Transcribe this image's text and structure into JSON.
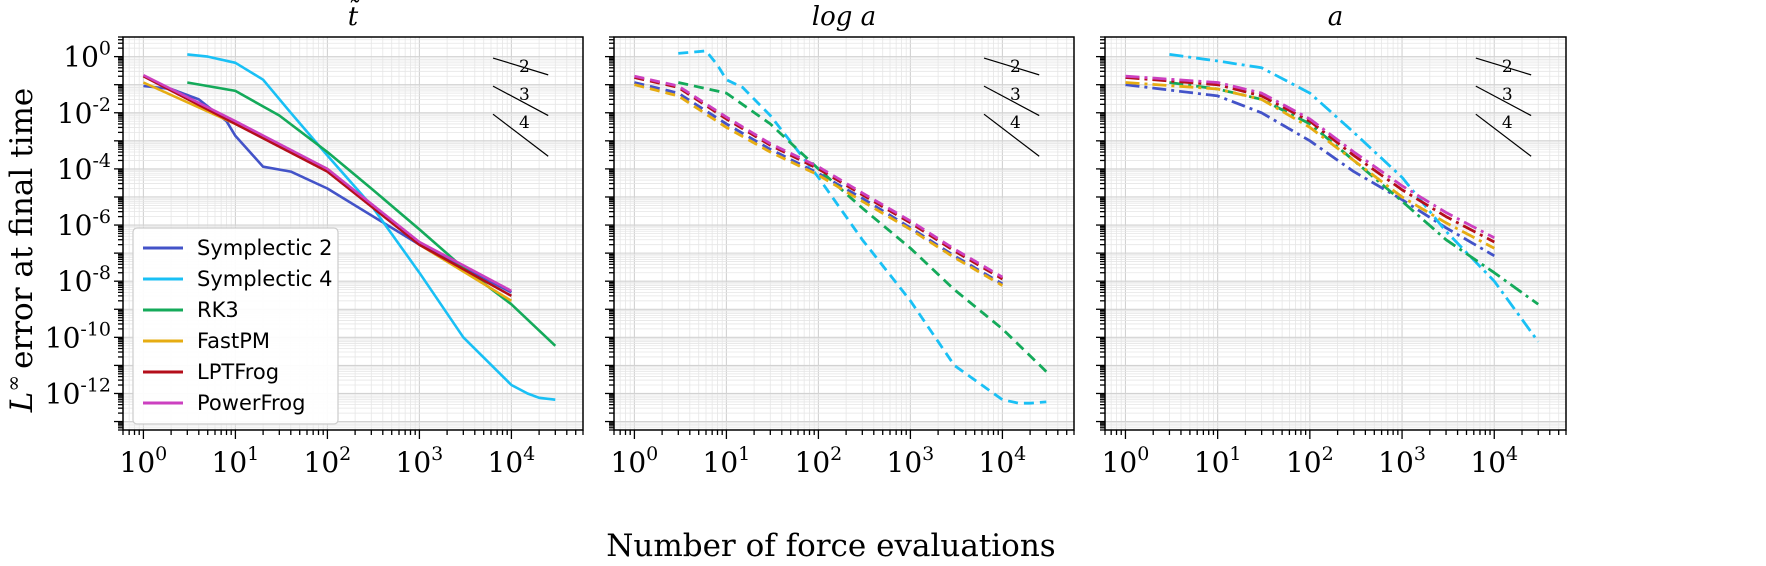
{
  "figure": {
    "ylabel": "error at final time",
    "ylabel_math": "L",
    "ylabel_sup": "∞",
    "xlabel": "Number of force evaluations"
  },
  "legend": {
    "placement": "lower-left of first panel",
    "entries": [
      {
        "name": "Symplectic 2",
        "color": "#4353c8"
      },
      {
        "name": "Symplectic 4",
        "color": "#19c0f5"
      },
      {
        "name": "RK3",
        "color": "#14aa5a"
      },
      {
        "name": "FastPM",
        "color": "#e6ac12"
      },
      {
        "name": "LPTFrog",
        "color": "#b40e1a"
      },
      {
        "name": "PowerFrog",
        "color": "#cc40c0"
      }
    ]
  },
  "x_ticks": [
    {
      "base": "10",
      "exp": "0",
      "value": 1
    },
    {
      "base": "10",
      "exp": "1",
      "value": 10
    },
    {
      "base": "10",
      "exp": "2",
      "value": 100
    },
    {
      "base": "10",
      "exp": "3",
      "value": 1000
    },
    {
      "base": "10",
      "exp": "4",
      "value": 10000
    }
  ],
  "y_ticks": [
    {
      "base": "10",
      "exp": "0",
      "value": 1
    },
    {
      "base": "10",
      "exp": "-2",
      "value": 0.01
    },
    {
      "base": "10",
      "exp": "-4",
      "value": 0.0001
    },
    {
      "base": "10",
      "exp": "-6",
      "value": 1e-06
    },
    {
      "base": "10",
      "exp": "-8",
      "value": 1e-08
    },
    {
      "base": "10",
      "exp": "-10",
      "value": 1e-10
    },
    {
      "base": "10",
      "exp": "-12",
      "value": 1e-12
    }
  ],
  "slope_labels": [
    "2",
    "3",
    "4"
  ],
  "chart_data": [
    {
      "type": "line",
      "title": "t̃",
      "xscale": "log",
      "yscale": "log",
      "xlim": [
        0.6,
        60000
      ],
      "ylim": [
        5e-14,
        5
      ],
      "grid": true,
      "line_style": "solid",
      "series": [
        {
          "name": "Symplectic 2",
          "x": [
            1,
            2,
            4,
            8,
            10,
            20,
            40,
            100,
            1000,
            10000
          ],
          "y": [
            0.09,
            0.07,
            0.03,
            0.005,
            0.0015,
            0.00012,
            8e-05,
            2e-05,
            2e-07,
            4e-09
          ]
        },
        {
          "name": "Symplectic 4",
          "x": [
            3,
            5,
            10,
            20,
            40,
            100,
            300,
            1000,
            3000,
            10000,
            15000,
            20000,
            30000
          ],
          "y": [
            1.2,
            1.0,
            0.6,
            0.15,
            0.01,
            0.0003,
            5e-06,
            2e-08,
            1e-10,
            2e-12,
            1e-12,
            7e-13,
            6e-13
          ]
        },
        {
          "name": "RK3",
          "x": [
            3,
            10,
            30,
            100,
            300,
            1000,
            3000,
            10000,
            30000
          ],
          "y": [
            0.12,
            0.06,
            0.008,
            0.0004,
            2e-05,
            7e-07,
            3e-08,
            1.5e-09,
            5e-11
          ]
        },
        {
          "name": "FastPM",
          "x": [
            1,
            10,
            100,
            1000,
            10000
          ],
          "y": [
            0.12,
            0.004,
            0.0001,
            2e-07,
            2e-09
          ]
        },
        {
          "name": "LPTFrog",
          "x": [
            1,
            10,
            100,
            1000,
            10000
          ],
          "y": [
            0.2,
            0.004,
            8e-05,
            2e-07,
            3e-09
          ]
        },
        {
          "name": "PowerFrog",
          "x": [
            1,
            10,
            100,
            1000,
            10000
          ],
          "y": [
            0.22,
            0.005,
            0.0001,
            2.5e-07,
            4.5e-09
          ]
        }
      ]
    },
    {
      "type": "line",
      "title": "log a",
      "xscale": "log",
      "yscale": "log",
      "xlim": [
        0.6,
        60000
      ],
      "ylim": [
        5e-14,
        5
      ],
      "grid": true,
      "line_style": "dashed",
      "series": [
        {
          "name": "Symplectic 2",
          "x": [
            1,
            3,
            10,
            30,
            100,
            300,
            1000,
            3000,
            10000
          ],
          "y": [
            0.12,
            0.05,
            0.004,
            0.0005,
            7e-05,
            9e-06,
            8e-07,
            8e-08,
            8e-09
          ]
        },
        {
          "name": "Symplectic 4",
          "x": [
            3,
            6,
            8,
            10,
            15,
            30,
            100,
            300,
            1000,
            3000,
            10000,
            15000,
            20000,
            30000
          ],
          "y": [
            1.3,
            1.6,
            0.5,
            0.15,
            0.08,
            0.008,
            5e-05,
            3e-07,
            2e-09,
            1e-11,
            6e-13,
            4.5e-13,
            4.5e-13,
            5e-13
          ]
        },
        {
          "name": "RK3",
          "x": [
            3,
            10,
            30,
            100,
            300,
            1000,
            3000,
            10000,
            30000
          ],
          "y": [
            0.12,
            0.05,
            0.004,
            0.0001,
            4e-06,
            1.5e-07,
            5e-09,
            2e-10,
            6e-12
          ]
        },
        {
          "name": "FastPM",
          "x": [
            1,
            3,
            10,
            30,
            100,
            300,
            1000,
            3000,
            10000
          ],
          "y": [
            0.1,
            0.04,
            0.003,
            0.0004,
            6e-05,
            7e-06,
            7e-07,
            7e-08,
            7e-09
          ]
        },
        {
          "name": "LPTFrog",
          "x": [
            1,
            3,
            10,
            30,
            100,
            300,
            1000,
            3000,
            10000
          ],
          "y": [
            0.18,
            0.08,
            0.006,
            0.0007,
            0.0001,
            1.2e-05,
            1.2e-06,
            1.2e-07,
            1.2e-08
          ]
        },
        {
          "name": "PowerFrog",
          "x": [
            1,
            3,
            10,
            30,
            100,
            300,
            1000,
            3000,
            10000
          ],
          "y": [
            0.2,
            0.09,
            0.007,
            0.0008,
            0.00012,
            1.4e-05,
            1.4e-06,
            1.4e-07,
            1.4e-08
          ]
        }
      ]
    },
    {
      "type": "line",
      "title": "a",
      "xscale": "log",
      "yscale": "log",
      "xlim": [
        0.6,
        60000
      ],
      "ylim": [
        5e-14,
        5
      ],
      "grid": true,
      "line_style": "dash-dot",
      "series": [
        {
          "name": "Symplectic 2",
          "x": [
            1,
            10,
            30,
            100,
            300,
            1000,
            3000,
            10000
          ],
          "y": [
            0.1,
            0.04,
            0.01,
            0.001,
            8e-05,
            8e-06,
            8e-07,
            8e-08
          ]
        },
        {
          "name": "Symplectic 4",
          "x": [
            3,
            10,
            30,
            100,
            300,
            1000,
            3000,
            10000,
            30000
          ],
          "y": [
            1.2,
            0.7,
            0.4,
            0.05,
            0.002,
            5e-05,
            6e-07,
            1e-08,
            7e-11
          ]
        },
        {
          "name": "RK3",
          "x": [
            3,
            10,
            30,
            100,
            300,
            1000,
            3000,
            10000,
            30000
          ],
          "y": [
            0.12,
            0.07,
            0.03,
            0.004,
            0.0002,
            7e-06,
            3e-07,
            2e-08,
            1.5e-09
          ]
        },
        {
          "name": "FastPM",
          "x": [
            1,
            10,
            30,
            100,
            300,
            1000,
            3000,
            10000
          ],
          "y": [
            0.12,
            0.07,
            0.03,
            0.003,
            0.0002,
            1e-05,
            1.2e-06,
            1.5e-07
          ]
        },
        {
          "name": "LPTFrog",
          "x": [
            1,
            10,
            30,
            100,
            300,
            1000,
            3000,
            10000
          ],
          "y": [
            0.18,
            0.1,
            0.04,
            0.005,
            0.0003,
            1.8e-05,
            2e-06,
            2.5e-07
          ]
        },
        {
          "name": "PowerFrog",
          "x": [
            1,
            10,
            30,
            100,
            300,
            1000,
            3000,
            10000
          ],
          "y": [
            0.2,
            0.12,
            0.05,
            0.006,
            0.0004,
            2.5e-05,
            2.8e-06,
            3.5e-07
          ]
        }
      ]
    }
  ]
}
